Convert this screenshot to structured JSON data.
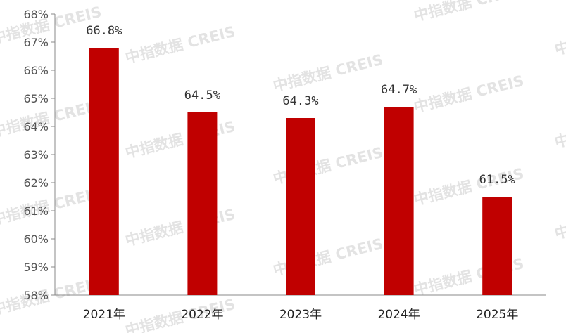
{
  "watermark_text": "中指数据 CREIS",
  "chart_data": {
    "type": "bar",
    "categories": [
      "2021年",
      "2022年",
      "2023年",
      "2024年",
      "2025年"
    ],
    "values": [
      66.8,
      64.5,
      64.3,
      64.7,
      61.5
    ],
    "value_labels": [
      "66.8%",
      "64.5%",
      "64.3%",
      "64.7%",
      "61.5%"
    ],
    "y_ticks": [
      "58%",
      "59%",
      "60%",
      "61%",
      "62%",
      "63%",
      "64%",
      "65%",
      "66%",
      "67%",
      "68%"
    ],
    "ylim": [
      58,
      68
    ],
    "unit": "%",
    "title": "",
    "xlabel": "",
    "ylabel": "",
    "bar_color": "#c00000",
    "grid": false,
    "legend": "none"
  }
}
